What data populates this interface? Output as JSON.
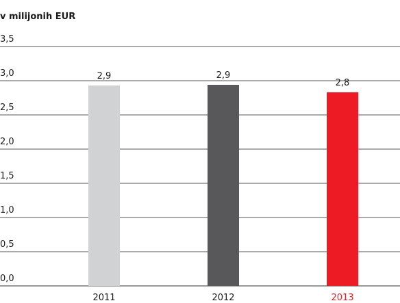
{
  "chart_data": {
    "type": "bar",
    "title": "v milijonih EUR",
    "categories": [
      "2011",
      "2012",
      "2013"
    ],
    "values": [
      2.93,
      2.94,
      2.83
    ],
    "value_labels": [
      "2,9",
      "2,9",
      "2,8"
    ],
    "colors": [
      "#d1d2d4",
      "#58585a",
      "#ed1c24"
    ],
    "category_colors": [
      "#1a1a1a",
      "#1a1a1a",
      "#ed1c24"
    ],
    "ylim": [
      0,
      3.5
    ],
    "yticks": [
      {
        "value": 0,
        "label": "0,0"
      },
      {
        "value": 0.5,
        "label": "0,5"
      },
      {
        "value": 1,
        "label": "1,0"
      },
      {
        "value": 1.5,
        "label": "1,5"
      },
      {
        "value": 2,
        "label": "2,0"
      },
      {
        "value": 2.5,
        "label": "2,5"
      },
      {
        "value": 3,
        "label": "3,0"
      },
      {
        "value": 3.5,
        "label": "3,5"
      }
    ],
    "grid": true
  }
}
